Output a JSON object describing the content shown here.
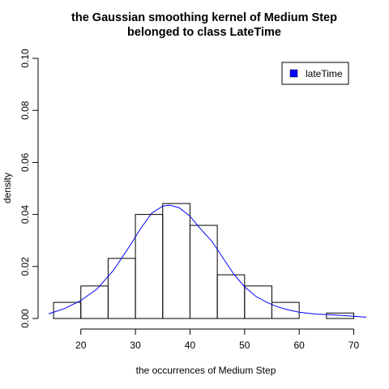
{
  "chart_data": {
    "type": "histogram",
    "title_lines": [
      "the Gaussian smoothing kernel of Medium Step",
      "belonged to class LateTime"
    ],
    "xlabel": "the occurrences of Medium Step",
    "ylabel": "density",
    "xlim": [
      14.1,
      72.3
    ],
    "ylim": [
      0,
      0.1
    ],
    "x_ticks": [
      "20",
      "30",
      "40",
      "50",
      "60",
      "70"
    ],
    "y_ticks": [
      "0.00",
      "0.02",
      "0.04",
      "0.06",
      "0.08",
      "0.10"
    ],
    "bins": [
      {
        "x0": 15,
        "x1": 20,
        "density": 0.0062
      },
      {
        "x0": 20,
        "x1": 25,
        "density": 0.0125
      },
      {
        "x0": 25,
        "x1": 30,
        "density": 0.0231
      },
      {
        "x0": 30,
        "x1": 35,
        "density": 0.04
      },
      {
        "x0": 35,
        "x1": 40,
        "density": 0.0442
      },
      {
        "x0": 40,
        "x1": 45,
        "density": 0.0358
      },
      {
        "x0": 45,
        "x1": 50,
        "density": 0.0168
      },
      {
        "x0": 50,
        "x1": 55,
        "density": 0.0125
      },
      {
        "x0": 55,
        "x1": 60,
        "density": 0.0062
      },
      {
        "x0": 60,
        "x1": 65,
        "density": 0.0
      },
      {
        "x0": 65,
        "x1": 70,
        "density": 0.0021
      }
    ],
    "kde": {
      "name": "lateTime",
      "color": "#0000ff",
      "points": [
        [
          14.1,
          0.0018
        ],
        [
          17,
          0.0038
        ],
        [
          20,
          0.0069
        ],
        [
          23,
          0.0114
        ],
        [
          26,
          0.0186
        ],
        [
          29,
          0.028
        ],
        [
          31,
          0.0347
        ],
        [
          33,
          0.0405
        ],
        [
          35,
          0.0432
        ],
        [
          36.2,
          0.0436
        ],
        [
          38,
          0.0426
        ],
        [
          40,
          0.0393
        ],
        [
          42,
          0.0343
        ],
        [
          44,
          0.0297
        ],
        [
          46,
          0.0234
        ],
        [
          48,
          0.0171
        ],
        [
          50,
          0.0122
        ],
        [
          52,
          0.0086
        ],
        [
          54,
          0.0063
        ],
        [
          56,
          0.0045
        ],
        [
          58,
          0.0033
        ],
        [
          60,
          0.0024
        ],
        [
          63,
          0.0017
        ],
        [
          66,
          0.0014
        ],
        [
          69,
          0.001
        ],
        [
          72.3,
          0.0005
        ]
      ]
    },
    "legend": {
      "position": "top-right",
      "entries": [
        {
          "label": "lateTime",
          "color": "#0000ff"
        }
      ]
    },
    "grid": false
  }
}
